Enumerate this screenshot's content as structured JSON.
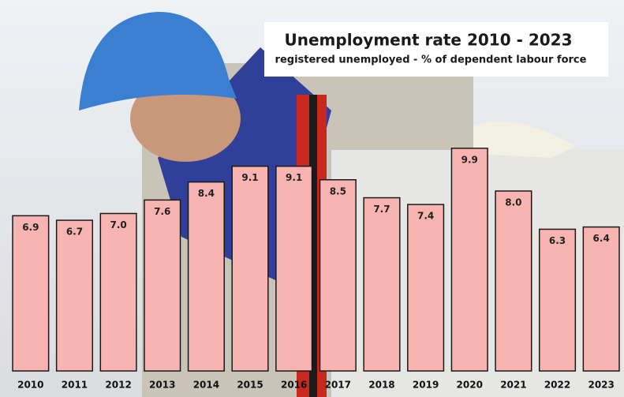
{
  "chart_data": {
    "type": "bar",
    "title": "Unemployment rate 2010 - 2023",
    "subtitle": "registered unemployed - % of dependent labour force",
    "categories": [
      "2010",
      "2011",
      "2012",
      "2013",
      "2014",
      "2015",
      "2016",
      "2017",
      "2018",
      "2019",
      "2020",
      "2021",
      "2022",
      "2023"
    ],
    "values": [
      6.9,
      6.7,
      7.0,
      7.6,
      8.4,
      9.1,
      9.1,
      8.5,
      7.7,
      7.4,
      9.9,
      8.0,
      6.3,
      6.4
    ],
    "value_labels": [
      "6.9",
      "6.7",
      "7.0",
      "7.6",
      "8.4",
      "9.1",
      "9.1",
      "8.5",
      "7.7",
      "7.4",
      "9.9",
      "8.0",
      "6.3",
      "6.4"
    ],
    "color": "#f8b4b1"
  }
}
